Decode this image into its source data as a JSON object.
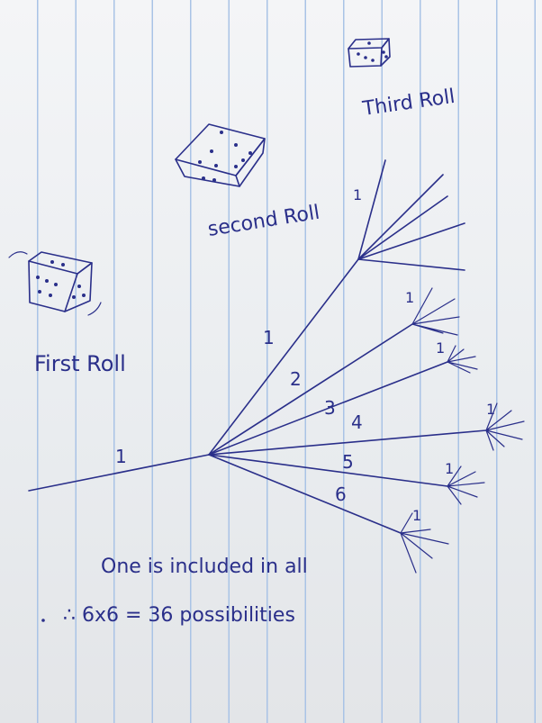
{
  "labels": {
    "third_roll": "Third Roll",
    "second_roll": "second Roll",
    "first_roll": "First Roll"
  },
  "tree": {
    "first_branch": "1",
    "second_branches": [
      "1",
      "2",
      "3",
      "4",
      "5",
      "6"
    ],
    "third_markers": [
      "1",
      "1",
      "1",
      "1",
      "1",
      "1"
    ]
  },
  "notes": {
    "line1": "One is included in all",
    "line2": "∴ 6x6 = 36 possibilities"
  },
  "colors": {
    "ink": "#2a2f8a",
    "rule_lines": "#a9c3e6",
    "paper": "#f4f5f7"
  },
  "icons": [
    "die-icon-third",
    "die-icon-second",
    "die-icon-first"
  ]
}
